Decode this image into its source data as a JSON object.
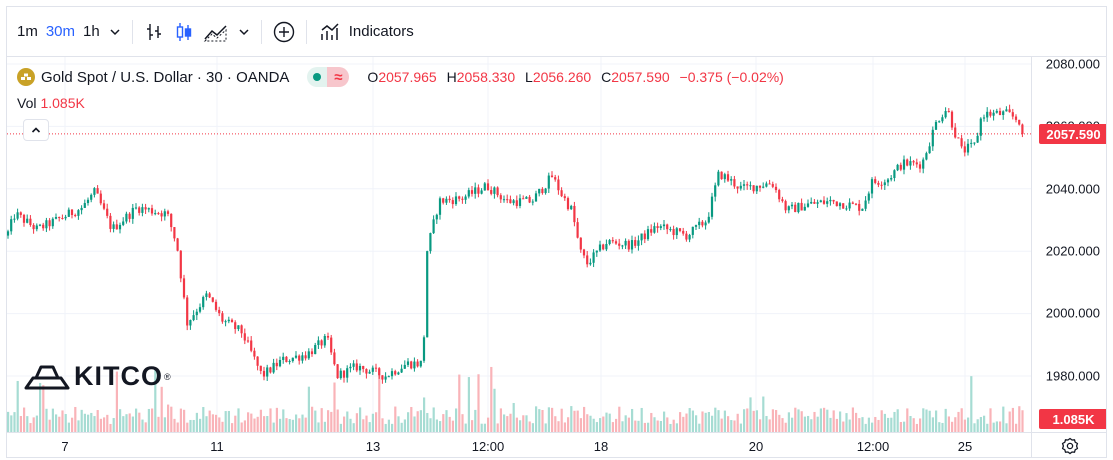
{
  "toolbar": {
    "intervals": [
      "1m",
      "30m",
      "1h"
    ],
    "active_interval": "30m",
    "indicators_label": "Indicators",
    "icons": [
      "chevron-down-icon",
      "bar-chart-icon",
      "candles-icon",
      "area-chart-icon",
      "chevron-down-icon",
      "compare-plus-icon",
      "indicators-icon"
    ]
  },
  "legend": {
    "title": "Gold Spot / U.S. Dollar · 30 · OANDA",
    "o_label": "O",
    "o_value": "2057.965",
    "h_label": "H",
    "h_value": "2058.330",
    "l_label": "L",
    "l_value": "2056.260",
    "c_label": "C",
    "c_value": "2057.590",
    "change": "−0.375 (−0.02%)",
    "vol_label": "Vol",
    "vol_value": "1.085K"
  },
  "watermark": {
    "text": "KITCO"
  },
  "price_axis": {
    "ticks": [
      "2080.000",
      "2060.000",
      "2040.000",
      "2020.000",
      "2000.000",
      "1980.000"
    ],
    "last_price_label": "2057.590",
    "volume_label": "1.085K"
  },
  "time_axis": {
    "ticks": [
      "7",
      "11",
      "13",
      "12:00",
      "18",
      "20",
      "12:00",
      "25"
    ]
  },
  "colors": {
    "up": "#089981",
    "down": "#f23645",
    "up_vol": "#a6dcd3",
    "down_vol": "#f9b3b8",
    "accent": "#2962ff"
  },
  "chart_data": {
    "type": "candlestick",
    "symbol": "Gold Spot / U.S. Dollar",
    "interval": "30",
    "ylim": [
      1974,
      2082
    ],
    "y_ticks": [
      2080,
      2060,
      2040,
      2020,
      2000,
      1980
    ],
    "x_ticks": [
      "7",
      "11",
      "13",
      "12:00",
      "18",
      "20",
      "12:00",
      "25"
    ],
    "last_price": 2057.59,
    "path": [
      [
        0,
        2025
      ],
      [
        8,
        2032
      ],
      [
        30,
        2027
      ],
      [
        50,
        2030
      ],
      [
        75,
        2034
      ],
      [
        88,
        2039
      ],
      [
        105,
        2027
      ],
      [
        130,
        2034
      ],
      [
        160,
        2032
      ],
      [
        170,
        2022
      ],
      [
        180,
        1997
      ],
      [
        200,
        2006
      ],
      [
        215,
        1998
      ],
      [
        235,
        1994
      ],
      [
        255,
        1980
      ],
      [
        275,
        1985
      ],
      [
        300,
        1987
      ],
      [
        320,
        1992
      ],
      [
        330,
        1980
      ],
      [
        350,
        1983
      ],
      [
        378,
        1980
      ],
      [
        400,
        1984
      ],
      [
        416,
        1984
      ],
      [
        420,
        2020
      ],
      [
        432,
        2036
      ],
      [
        455,
        2037
      ],
      [
        480,
        2041
      ],
      [
        500,
        2036
      ],
      [
        525,
        2036
      ],
      [
        545,
        2044
      ],
      [
        555,
        2038
      ],
      [
        565,
        2033
      ],
      [
        573,
        2020
      ],
      [
        580,
        2016
      ],
      [
        600,
        2023
      ],
      [
        625,
        2022
      ],
      [
        650,
        2028
      ],
      [
        680,
        2025
      ],
      [
        700,
        2030
      ],
      [
        712,
        2045
      ],
      [
        735,
        2040
      ],
      [
        765,
        2042
      ],
      [
        780,
        2033
      ],
      [
        800,
        2035
      ],
      [
        825,
        2036
      ],
      [
        855,
        2034
      ],
      [
        865,
        2042
      ],
      [
        880,
        2043
      ],
      [
        895,
        2048
      ],
      [
        915,
        2048
      ],
      [
        930,
        2062
      ],
      [
        940,
        2066
      ],
      [
        948,
        2058
      ],
      [
        955,
        2052
      ],
      [
        968,
        2054
      ],
      [
        975,
        2064
      ],
      [
        1000,
        2064
      ],
      [
        1012,
        2062
      ],
      [
        1018,
        2057.59
      ]
    ]
  }
}
